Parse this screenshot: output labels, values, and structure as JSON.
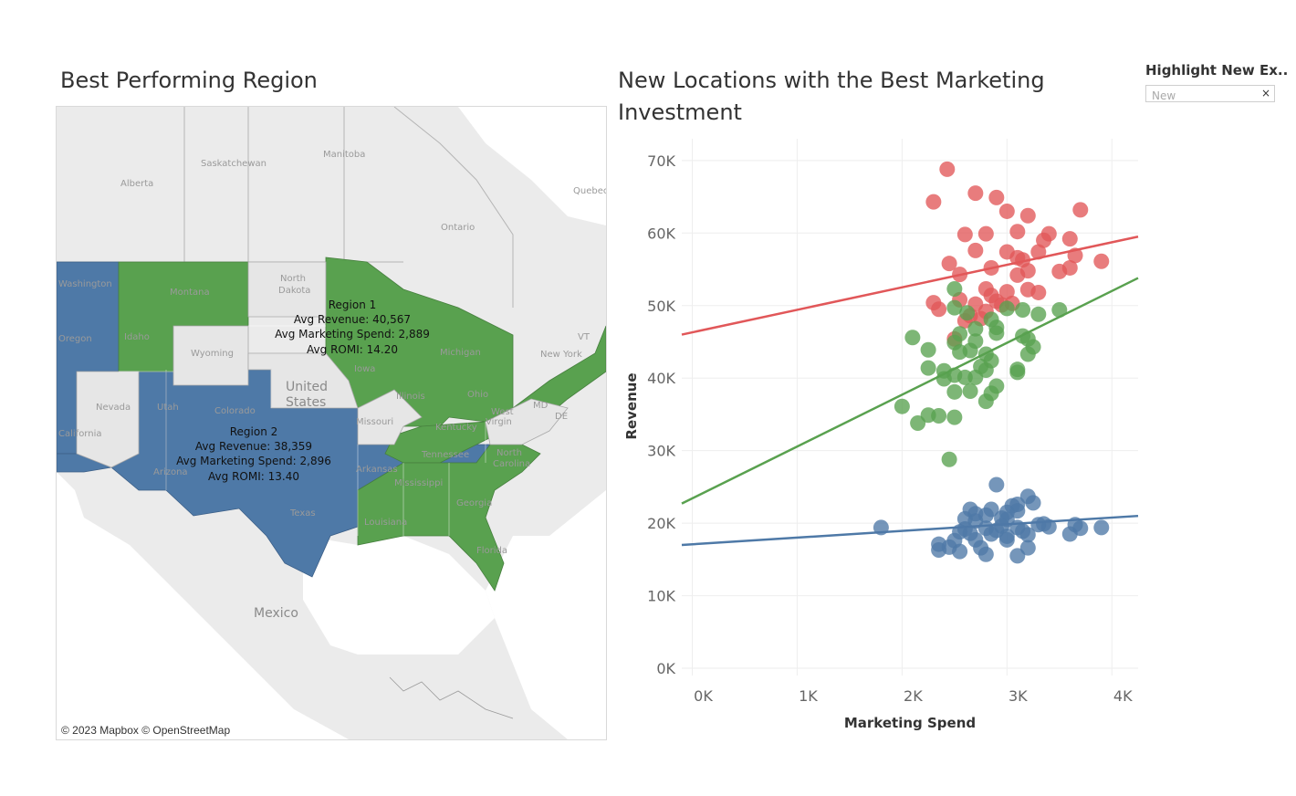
{
  "map": {
    "title": "Best Performing Region",
    "copyright": "© 2023 Mapbox © OpenStreetMap",
    "colors": {
      "region1": "#59a14f",
      "region2": "#4e79a7",
      "unassigned": "#e6e6e6",
      "background": "#ebebeb"
    },
    "place_labels": {
      "manitoba": "Manitoba",
      "saskatchewan": "Saskatchewan",
      "alberta": "Alberta",
      "ontario": "Ontario",
      "quebec": "Quebec",
      "north_dakota_1": "North",
      "north_dakota_2": "Dakota",
      "montana": "Montana",
      "wyoming": "Wyoming",
      "idaho": "Idaho",
      "nevada": "Nevada",
      "utah": "Utah",
      "colorado": "Colorado",
      "oregon": "Oregon",
      "washington": "Washington",
      "california": "California",
      "arizona": "Arizona",
      "texas": "Texas",
      "iowa": "Iowa",
      "missouri": "Missouri",
      "illinois": "Illinois",
      "ohio": "Ohio",
      "michigan": "Michigan",
      "kentucky": "Kentucky",
      "tennessee": "Tennessee",
      "arkansas": "Arkansas",
      "louisiana": "Louisiana",
      "mississippi": "Mississippi",
      "georgia": "Georgia",
      "north_carolina_1": "North",
      "north_carolina_2": "Carolina",
      "florida": "Florida",
      "west_virginia_1": "West",
      "west_virginia_2": "Virgin",
      "new_york": "New York",
      "md": "MD",
      "de": "DE",
      "vt": "VT",
      "united_states_1": "United",
      "united_states_2": "States",
      "mexico": "Mexico"
    },
    "regions": [
      {
        "name": "Region 1",
        "revenue": "Avg Revenue: 40,567",
        "spend": "Avg Marketing Spend: 2,889",
        "romi": "Avg ROMI: 14.20"
      },
      {
        "name": "Region 2",
        "revenue": "Avg Revenue: 38,359",
        "spend": "Avg Marketing Spend: 2,896",
        "romi": "Avg ROMI: 13.40"
      }
    ]
  },
  "scatter": {
    "title": "New Locations with the Best Marketing Investment"
  },
  "filter": {
    "title": "Highlight New Ex..",
    "placeholder": "New",
    "clear_icon": "×"
  },
  "chart_data": {
    "type": "scatter",
    "title": "New Locations with the Best Marketing Investment",
    "xlabel": "Marketing Spend",
    "ylabel": "Revenue",
    "xlim": [
      -100,
      4250
    ],
    "ylim": [
      -1000,
      73000
    ],
    "x_ticks": [
      0,
      1000,
      2000,
      3000,
      4000
    ],
    "x_tick_labels": [
      "0K",
      "1K",
      "2K",
      "3K",
      "4K"
    ],
    "y_ticks": [
      0,
      10000,
      20000,
      30000,
      40000,
      50000,
      60000,
      70000
    ],
    "y_tick_labels": [
      "0K",
      "10K",
      "20K",
      "30K",
      "40K",
      "50K",
      "60K",
      "70K"
    ],
    "grid": true,
    "series": [
      {
        "color": "#e15759",
        "trend": [
          [
            -100,
            46000
          ],
          [
            4250,
            59500
          ]
        ],
        "points": [
          [
            2430,
            68800
          ],
          [
            2300,
            64300
          ],
          [
            2700,
            65500
          ],
          [
            2900,
            64900
          ],
          [
            3000,
            63000
          ],
          [
            3200,
            62400
          ],
          [
            3700,
            63200
          ],
          [
            2600,
            59800
          ],
          [
            2800,
            59900
          ],
          [
            3100,
            60200
          ],
          [
            3400,
            59900
          ],
          [
            3600,
            59200
          ],
          [
            3350,
            59000
          ],
          [
            3300,
            57400
          ],
          [
            2700,
            57600
          ],
          [
            3000,
            57400
          ],
          [
            3100,
            56600
          ],
          [
            3900,
            56100
          ],
          [
            3650,
            56900
          ],
          [
            3150,
            56300
          ],
          [
            2450,
            55800
          ],
          [
            2850,
            55200
          ],
          [
            3200,
            54800
          ],
          [
            3500,
            54700
          ],
          [
            3600,
            55200
          ],
          [
            2550,
            54300
          ],
          [
            3100,
            54200
          ],
          [
            3200,
            52200
          ],
          [
            2800,
            52300
          ],
          [
            3000,
            51900
          ],
          [
            3300,
            51800
          ],
          [
            2550,
            50800
          ],
          [
            2900,
            50600
          ],
          [
            2300,
            50400
          ],
          [
            2700,
            50200
          ],
          [
            2350,
            49500
          ],
          [
            2950,
            50100
          ],
          [
            2800,
            49200
          ],
          [
            2650,
            48600
          ],
          [
            2750,
            48200
          ],
          [
            2600,
            47900
          ],
          [
            2500,
            45400
          ],
          [
            3050,
            50300
          ],
          [
            2850,
            51400
          ]
        ]
      },
      {
        "color": "#59a14f",
        "trend": [
          [
            -100,
            22700
          ],
          [
            4250,
            53800
          ]
        ],
        "points": [
          [
            2500,
            52300
          ],
          [
            2500,
            49700
          ],
          [
            3000,
            49600
          ],
          [
            3150,
            49400
          ],
          [
            3300,
            48800
          ],
          [
            3500,
            49400
          ],
          [
            2620,
            49000
          ],
          [
            2850,
            48100
          ],
          [
            2700,
            46800
          ],
          [
            2900,
            47000
          ],
          [
            2550,
            46100
          ],
          [
            2900,
            46200
          ],
          [
            3150,
            45800
          ],
          [
            3200,
            45400
          ],
          [
            2100,
            45600
          ],
          [
            2700,
            45100
          ],
          [
            2500,
            44900
          ],
          [
            2250,
            43900
          ],
          [
            2550,
            43600
          ],
          [
            2650,
            43800
          ],
          [
            2800,
            43300
          ],
          [
            3200,
            43300
          ],
          [
            3250,
            44300
          ],
          [
            2850,
            42400
          ],
          [
            2250,
            41400
          ],
          [
            2400,
            41000
          ],
          [
            2500,
            40400
          ],
          [
            2700,
            40100
          ],
          [
            2800,
            41100
          ],
          [
            2750,
            41600
          ],
          [
            3100,
            41200
          ],
          [
            3100,
            40800
          ],
          [
            2400,
            39900
          ],
          [
            2600,
            40100
          ],
          [
            2900,
            38900
          ],
          [
            2650,
            38200
          ],
          [
            2500,
            38100
          ],
          [
            2850,
            37900
          ],
          [
            2800,
            36800
          ],
          [
            2000,
            36100
          ],
          [
            2250,
            34900
          ],
          [
            2350,
            34800
          ],
          [
            2500,
            34600
          ],
          [
            2150,
            33800
          ],
          [
            2450,
            28800
          ]
        ]
      },
      {
        "color": "#4e79a7",
        "trend": [
          [
            -100,
            17000
          ],
          [
            4250,
            21000
          ]
        ],
        "points": [
          [
            2900,
            25300
          ],
          [
            3200,
            23700
          ],
          [
            3250,
            22800
          ],
          [
            3050,
            22400
          ],
          [
            3100,
            22600
          ],
          [
            2650,
            21900
          ],
          [
            2850,
            21900
          ],
          [
            2700,
            21300
          ],
          [
            2800,
            21100
          ],
          [
            3000,
            21500
          ],
          [
            3100,
            21700
          ],
          [
            2950,
            20700
          ],
          [
            3000,
            20500
          ],
          [
            2600,
            20600
          ],
          [
            2700,
            20300
          ],
          [
            3300,
            19800
          ],
          [
            3350,
            19900
          ],
          [
            3400,
            19500
          ],
          [
            3650,
            19800
          ],
          [
            3700,
            19300
          ],
          [
            3900,
            19400
          ],
          [
            1800,
            19400
          ],
          [
            2600,
            19200
          ],
          [
            2800,
            19300
          ],
          [
            2900,
            19000
          ],
          [
            2950,
            19600
          ],
          [
            3100,
            19400
          ],
          [
            3150,
            18900
          ],
          [
            2550,
            18800
          ],
          [
            2650,
            18600
          ],
          [
            2850,
            18500
          ],
          [
            3000,
            18200
          ],
          [
            3200,
            18400
          ],
          [
            3600,
            18500
          ],
          [
            2500,
            17600
          ],
          [
            2700,
            17700
          ],
          [
            3000,
            17700
          ],
          [
            2350,
            17100
          ],
          [
            2450,
            16700
          ],
          [
            2750,
            16600
          ],
          [
            3200,
            16600
          ],
          [
            2350,
            16300
          ],
          [
            2550,
            16100
          ],
          [
            2800,
            15700
          ],
          [
            3100,
            15500
          ]
        ]
      }
    ]
  }
}
